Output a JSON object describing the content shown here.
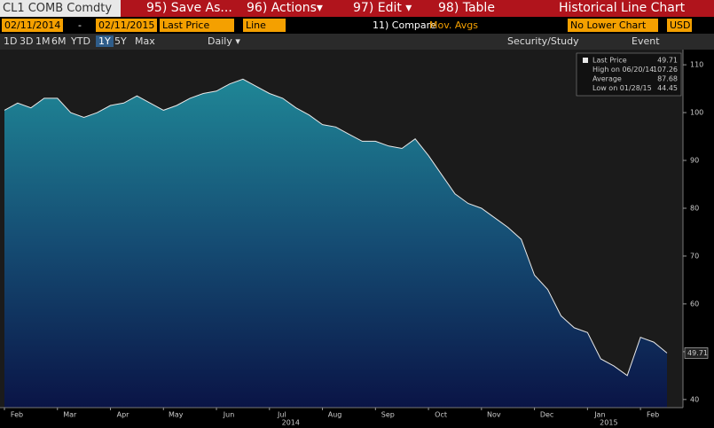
{
  "toolbar": {
    "security": "CL1 COMB Comdty",
    "buttons": [
      "95) Save As...",
      "96) Actions▾",
      "97) Edit ▾",
      "98) Table"
    ],
    "title": "Historical Line Chart"
  },
  "settings": {
    "start": "02/11/2014",
    "separator": "-",
    "end": "02/11/2015",
    "field": "Last Price",
    "style": "Line",
    "compare": "11) Compare",
    "compare_value": "Mov. Avgs",
    "lower": "No Lower Chart",
    "currency": "USD"
  },
  "periods": {
    "items": [
      "1D",
      "3D",
      "1M",
      "6M",
      "YTD",
      "1Y",
      "5Y",
      "Max"
    ],
    "selected": 5,
    "frequency": "Daily ▾",
    "security_study": "Security/Study",
    "event": "Event"
  },
  "chart_data": {
    "type": "area",
    "categories": [
      "Feb",
      null,
      null,
      null,
      "Mar",
      null,
      null,
      null,
      "Apr",
      null,
      null,
      null,
      "May",
      null,
      null,
      null,
      "Jun",
      null,
      null,
      null,
      "Jul",
      null,
      null,
      null,
      "Aug",
      null,
      null,
      null,
      "Sep",
      null,
      null,
      null,
      "Oct",
      null,
      null,
      null,
      "Nov",
      null,
      null,
      null,
      "Dec",
      null,
      null,
      null,
      "Jan",
      null,
      null,
      null,
      "Feb",
      null,
      null
    ],
    "year_labels": [
      "2014",
      "2015"
    ],
    "series": [
      {
        "name": "Last Price",
        "color": "#e8e8e8",
        "values": [
          100.5,
          102,
          101,
          103,
          103,
          100,
          99,
          100,
          101.5,
          102,
          103.5,
          102,
          100.5,
          101.5,
          103,
          104,
          104.5,
          106,
          107,
          105.5,
          104,
          103,
          101,
          99.5,
          97.5,
          97,
          95.5,
          94,
          94,
          93,
          92.5,
          94.5,
          91,
          87,
          83,
          81,
          80,
          78,
          76,
          73.5,
          66,
          63,
          57.5,
          55,
          54,
          48.5,
          47,
          45,
          53,
          52,
          49.71
        ]
      }
    ],
    "ylim": [
      38.3,
      112.8
    ],
    "yticks": [
      40,
      50,
      60,
      70,
      80,
      90,
      100,
      110
    ],
    "legend": [
      {
        "label": "Last Price",
        "value": "49.71"
      },
      {
        "label": "High on 06/20/14",
        "value": "107.26"
      },
      {
        "label": "Average",
        "value": "87.68"
      },
      {
        "label": "Low on 01/28/15",
        "value": "44.45"
      }
    ]
  }
}
